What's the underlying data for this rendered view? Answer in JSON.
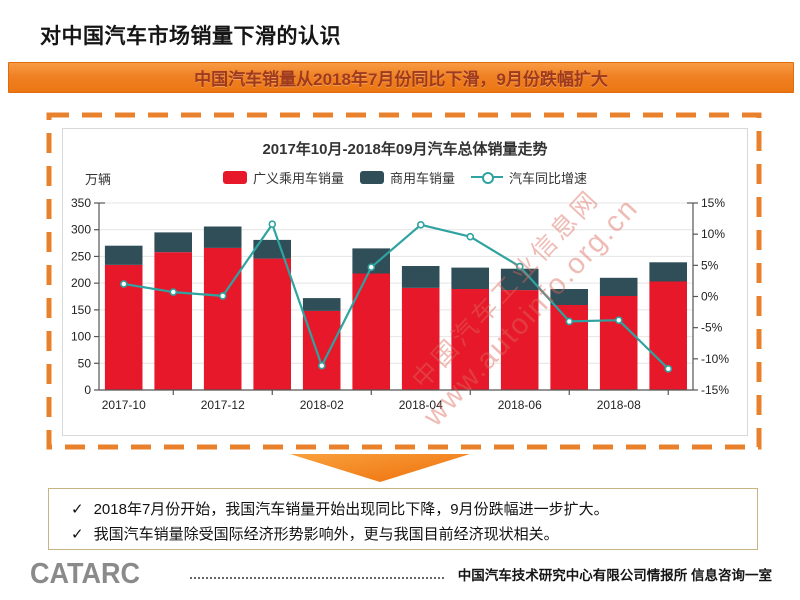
{
  "page": {
    "title": "对中国汽车市场销量下滑的认识",
    "banner": "中国汽车销量从2018年7月份同比下滑，9月份跌幅扩大"
  },
  "chart_data": {
    "type": "bar",
    "subtype": "stacked-bars-with-line",
    "title": "2017年10月-2018年09月汽车总体销量走势",
    "unit_label": "万辆",
    "categories": [
      "2017-10",
      "2017-11",
      "2017-12",
      "2018-01",
      "2018-02",
      "2018-03",
      "2018-04",
      "2018-05",
      "2018-06",
      "2018-07",
      "2018-08",
      "2018-09"
    ],
    "x_labels_shown": [
      "2017-10",
      "2017-12",
      "2018-02",
      "2018-04",
      "2018-06",
      "2018-08"
    ],
    "series": [
      {
        "name": "广义乘用车销量",
        "type": "bar",
        "color": "#E8182B",
        "axis": "left",
        "values": [
          234,
          258,
          266,
          246,
          148,
          218,
          191,
          189,
          187,
          159,
          176,
          203
        ]
      },
      {
        "name": "商用车销量",
        "type": "bar",
        "color": "#2F4E57",
        "axis": "left",
        "values": [
          36,
          37,
          40,
          35,
          24,
          47,
          41,
          40,
          40,
          30,
          34,
          36
        ]
      },
      {
        "name": "汽车同比增速",
        "type": "line",
        "color": "#2FA3A0",
        "axis": "right",
        "values": [
          2.0,
          0.7,
          0.1,
          11.6,
          -11.1,
          4.7,
          11.5,
          9.6,
          4.8,
          -4.0,
          -3.8,
          -11.6
        ]
      }
    ],
    "left_axis": {
      "min": 0,
      "max": 350,
      "step": 50,
      "ticks": [
        "0",
        "50",
        "100",
        "150",
        "200",
        "250",
        "300",
        "350"
      ]
    },
    "right_axis": {
      "min": -15,
      "max": 15,
      "step": 5,
      "ticks": [
        "-15%",
        "-10%",
        "-5%",
        "0%",
        "5%",
        "10%",
        "15%"
      ]
    },
    "grid": "horizontal",
    "legend_position": "top-center"
  },
  "watermark": {
    "line1": "中国汽车工业信息网",
    "line2": "www.autoinfo.org.cn"
  },
  "summary": {
    "check": "✓",
    "bullets": [
      {
        "text": "2018年7月份开始，我国汽车销量开始出现同比下降，9月份跌幅进一步扩大。"
      },
      {
        "text": "我国汽车销量除受国际经济形势影响外，更与我国目前经济现状相关。"
      }
    ]
  },
  "footer": {
    "logo": "CATARC",
    "org": "中国汽车技术研究中心有限公司情报所  信息咨询一室"
  },
  "colors": {
    "banner_bg": "#F08124",
    "banner_text": "#9E3A1E",
    "dashed_border": "#E8802C",
    "passenger_bar": "#E8182B",
    "commercial_bar": "#2F4E57",
    "growth_line": "#2FA3A0",
    "summary_border": "#C8B483",
    "arrow": "#F07712"
  }
}
